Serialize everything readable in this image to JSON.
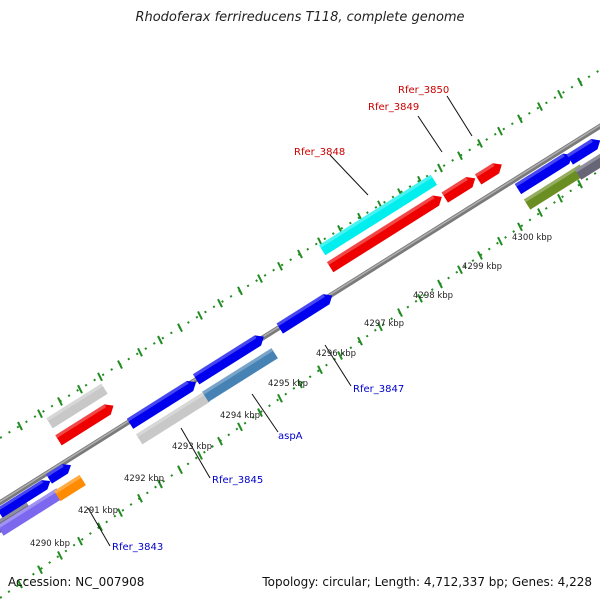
{
  "title": "Rhodoferax ferrireducens T118, complete genome",
  "footer": {
    "accession": "Accession: NC_007908",
    "topology": "Topology: circular; Length: 4,712,337 bp; Genes: 4,228"
  },
  "colors": {
    "backbone": "#8c8c8c",
    "forward_gene": "#0000ee",
    "red_gene": "#ee0000",
    "cyan_gene": "#00eeee",
    "steel_gene": "#4682b4",
    "grey_gene": "#c8c8c8",
    "olive_gene": "#6b8e23",
    "orange_gene": "#ff8c00",
    "purple_gene": "#7b68ee",
    "dark_gene": "#666677",
    "tick": "#228b22",
    "label_red": "#cc0000",
    "label_blue": "#0000cc"
  },
  "scale_labels": [
    "4290 kbp",
    "4291 kbp",
    "4292 kbp",
    "4293 kbp",
    "4294 kbp",
    "4295 kbp",
    "4296 kbp",
    "4297 kbp",
    "4298 kbp",
    "4299 kbp",
    "4300 kbp"
  ],
  "gene_labels": [
    {
      "text": "Rfer_3848",
      "color": "red"
    },
    {
      "text": "Rfer_3849",
      "color": "red"
    },
    {
      "text": "Rfer_3850",
      "color": "red"
    },
    {
      "text": "Rfer_3843",
      "color": "blue"
    },
    {
      "text": "Rfer_3845",
      "color": "blue"
    },
    {
      "text": "aspA",
      "color": "blue"
    },
    {
      "text": "Rfer_3847",
      "color": "blue"
    }
  ]
}
